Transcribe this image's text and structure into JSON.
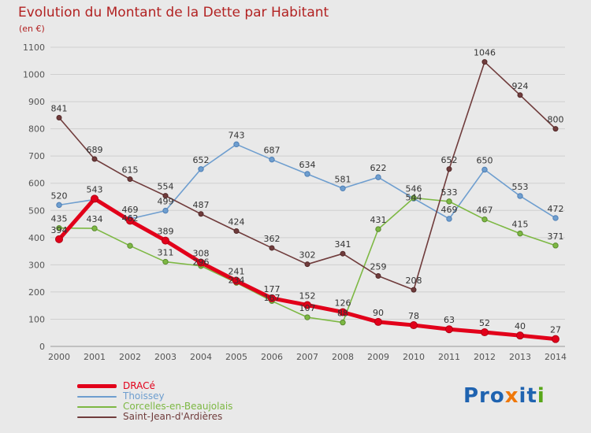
{
  "header": {
    "title": "Evolution du Montant de la Dette par Habitant",
    "subtitle": "(en €)",
    "color": "#b22222"
  },
  "chart_data": {
    "type": "line",
    "x": [
      2000,
      2001,
      2002,
      2003,
      2004,
      2005,
      2006,
      2007,
      2008,
      2009,
      2010,
      2011,
      2012,
      2013,
      2014
    ],
    "ylim": [
      0,
      1100
    ],
    "ytick_step": 100,
    "grid": true,
    "legend_position": "bottom-left",
    "label_color": "#333333",
    "tick_color": "#555555",
    "grid_color": "#cfcfcf",
    "axis_color": "#999999",
    "series": [
      {
        "name": "DRACé",
        "color": "#e2001a",
        "point_stroke": "#b00014",
        "line_width": 5,
        "point_radius": 4.5,
        "values": [
          394,
          543,
          462,
          389,
          308,
          241,
          177,
          152,
          126,
          90,
          78,
          63,
          52,
          40,
          27
        ],
        "labels": [
          "394",
          "543",
          "462",
          "389",
          "308",
          "241",
          "177",
          "152",
          "126",
          "90",
          "78",
          "63",
          "52",
          "40",
          "27"
        ]
      },
      {
        "name": "Thoissey",
        "color": "#6e9ecf",
        "point_stroke": "#4f7fb5",
        "line_width": 1.6,
        "point_radius": 3.2,
        "values": [
          520,
          540,
          469,
          499,
          652,
          743,
          687,
          634,
          581,
          622,
          544,
          469,
          650,
          553,
          472
        ],
        "labels": [
          "520",
          null,
          "469",
          "499",
          "652",
          "743",
          "687",
          "634",
          "581",
          "622",
          "544",
          "469",
          "650",
          "553",
          "472"
        ]
      },
      {
        "name": "Corcelles-en-Beaujolais",
        "color": "#7db843",
        "point_stroke": "#5a8a30",
        "line_width": 1.6,
        "point_radius": 3.2,
        "values": [
          435,
          434,
          370,
          311,
          296,
          234,
          167,
          107,
          88,
          431,
          546,
          533,
          467,
          415,
          371
        ],
        "labels": [
          "435",
          "434",
          null,
          "311",
          "296",
          "234",
          "167",
          "107",
          "88",
          "431",
          "546",
          "533",
          "467",
          "415",
          "371"
        ]
      },
      {
        "name": "Saint-Jean-d'Ardières",
        "color": "#703c3c",
        "point_stroke": "#522929",
        "line_width": 1.6,
        "point_radius": 3,
        "values": [
          841,
          689,
          615,
          554,
          487,
          424,
          362,
          302,
          341,
          259,
          208,
          652,
          1046,
          924,
          800
        ],
        "labels": [
          "841",
          "689",
          "615",
          "554",
          "487",
          "424",
          "362",
          "302",
          "341",
          "259",
          "208",
          "652",
          "1046",
          "924",
          "800"
        ]
      }
    ]
  },
  "logo": {
    "text": "Proxiti",
    "letters": [
      {
        "text": "Pro",
        "color": "#1f63b0"
      },
      {
        "text": "x",
        "color": "#f0780a"
      },
      {
        "text": "i",
        "color": "#1f63b0"
      },
      {
        "text": "t",
        "color": "#1f63b0"
      },
      {
        "text": "i",
        "color": "#58a618"
      }
    ]
  }
}
